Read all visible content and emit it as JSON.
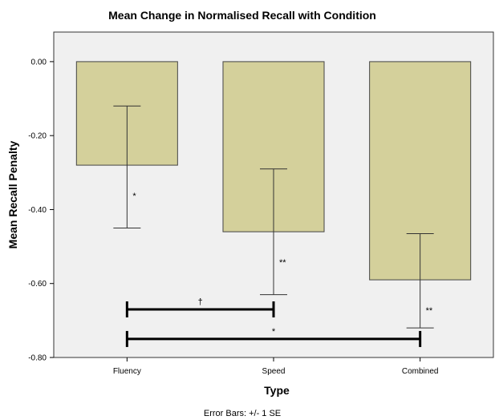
{
  "chart_data": {
    "type": "bar",
    "title": "Mean Change in Normalised Recall with Condition",
    "xlabel": "Type",
    "ylabel": "Mean Recall Penalty",
    "categories": [
      "Fluency",
      "Speed",
      "Combined"
    ],
    "values": [
      -0.28,
      -0.46,
      -0.59
    ],
    "error_bars": [
      {
        "low": -0.45,
        "high": -0.12
      },
      {
        "low": -0.63,
        "high": -0.29
      },
      {
        "low": -0.72,
        "high": -0.465
      }
    ],
    "ylim": [
      -0.8,
      0.08
    ],
    "yticks": [
      0.0,
      -0.2,
      -0.4,
      -0.6,
      -0.8
    ],
    "ytick_labels": [
      "0.00",
      "-0.20",
      "-0.40",
      "-0.60",
      "-0.80"
    ],
    "grid": false,
    "bar_color": "#d4d09b",
    "plot_background": "#f0f0f0",
    "bar_significance": [
      "*",
      "**",
      "**"
    ],
    "brackets": [
      {
        "from": "Fluency",
        "to": "Speed",
        "y": -0.67,
        "label": "†"
      },
      {
        "from": "Fluency",
        "to": "Combined",
        "y": -0.75,
        "label": "*"
      }
    ],
    "footnote": "Error Bars: +/- 1 SE"
  }
}
